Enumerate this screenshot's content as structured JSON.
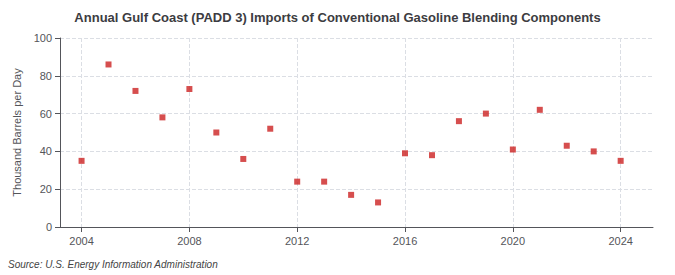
{
  "chart_data": {
    "type": "scatter",
    "title": "Annual Gulf Coast (PADD 3) Imports of Conventional Gasoline Blending Components",
    "ylabel": "Thousand Barrels per Day",
    "annotation": "Source: U.S. Energy Information Administration",
    "x": [
      2004,
      2005,
      2006,
      2007,
      2008,
      2009,
      2010,
      2011,
      2012,
      2013,
      2014,
      2015,
      2016,
      2017,
      2018,
      2019,
      2020,
      2021,
      2022,
      2023,
      2024
    ],
    "values": [
      35,
      86,
      72,
      58,
      73,
      50,
      36,
      52,
      24,
      24,
      17,
      13,
      39,
      38,
      56,
      60,
      41,
      62,
      43,
      40,
      35
    ],
    "color": "#cc2222",
    "marker": "square",
    "xlim": [
      2003.2,
      2025.2
    ],
    "xticks": [
      2004,
      2008,
      2012,
      2016,
      2020,
      2024
    ],
    "ylim": [
      0,
      100
    ],
    "yticks": [
      0,
      20,
      40,
      60,
      80,
      100
    ],
    "grid": true
  }
}
